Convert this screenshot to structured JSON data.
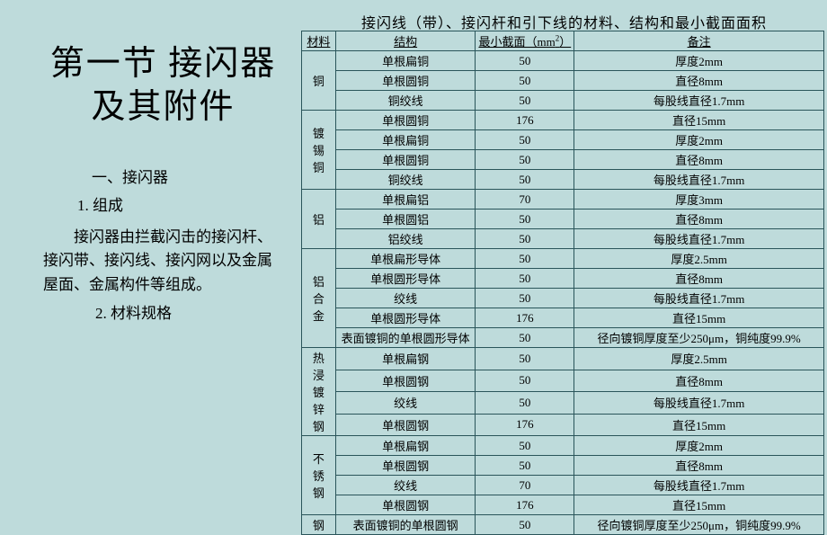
{
  "left": {
    "title": "第一节 接闪器及其附件",
    "sub1": "一、接闪器",
    "sub2": "1. 组成",
    "body": "接闪器由拦截闪击的接闪杆、接闪带、接闪线、接闪网以及金属屋面、金属构件等组成。",
    "sub3": "2. 材料规格"
  },
  "table": {
    "title": "接闪线（带）、接闪杆和引下线的材料、结构和最小截面面积",
    "headers": [
      "材料",
      "结构",
      "最小截面（mm²）",
      "备注"
    ],
    "groups": [
      {
        "material": "铜",
        "rows": [
          [
            "单根扁铜",
            "50",
            "厚度2mm"
          ],
          [
            "单根圆铜",
            "50",
            "直径8mm"
          ],
          [
            "铜绞线",
            "50",
            "每股线直径1.7mm"
          ]
        ]
      },
      {
        "material": "镀锡铜",
        "rows": [
          [
            "单根圆铜",
            "176",
            "直径15mm"
          ],
          [
            "单根扁铜",
            "50",
            "厚度2mm"
          ],
          [
            "单根圆铜",
            "50",
            "直径8mm"
          ],
          [
            "铜绞线",
            "50",
            "每股线直径1.7mm"
          ]
        ]
      },
      {
        "material": "铝",
        "rows": [
          [
            "单根扁铝",
            "70",
            "厚度3mm"
          ],
          [
            "单根圆铝",
            "50",
            "直径8mm"
          ],
          [
            "铝绞线",
            "50",
            "每股线直径1.7mm"
          ]
        ]
      },
      {
        "material": "铝合金",
        "rows": [
          [
            "单根扁形导体",
            "50",
            "厚度2.5mm"
          ],
          [
            "单根圆形导体",
            "50",
            "直径8mm"
          ],
          [
            "绞线",
            "50",
            "每股线直径1.7mm"
          ],
          [
            "单根圆形导体",
            "176",
            "直径15mm"
          ],
          [
            "表面镀铜的单根圆形导体",
            "50",
            "径向镀铜厚度至少250μm，铜纯度99.9%"
          ]
        ]
      },
      {
        "material": "热浸镀锌钢",
        "rows": [
          [
            "单根扁钢",
            "50",
            "厚度2.5mm"
          ],
          [
            "单根圆钢",
            "50",
            "直径8mm"
          ],
          [
            "绞线",
            "50",
            "每股线直径1.7mm"
          ],
          [
            "单根圆钢",
            "176",
            "直径15mm"
          ]
        ]
      },
      {
        "material": "不锈钢",
        "rows": [
          [
            "单根扁钢",
            "50",
            "厚度2mm"
          ],
          [
            "单根圆钢",
            "50",
            "直径8mm"
          ],
          [
            "绞线",
            "70",
            "每股线直径1.7mm"
          ],
          [
            "单根圆钢",
            "176",
            "直径15mm"
          ]
        ]
      },
      {
        "material": "钢",
        "rows": [
          [
            "表面镀铜的单根圆钢",
            "50",
            "径向镀铜厚度至少250μm，铜纯度99.9%"
          ]
        ]
      }
    ]
  }
}
